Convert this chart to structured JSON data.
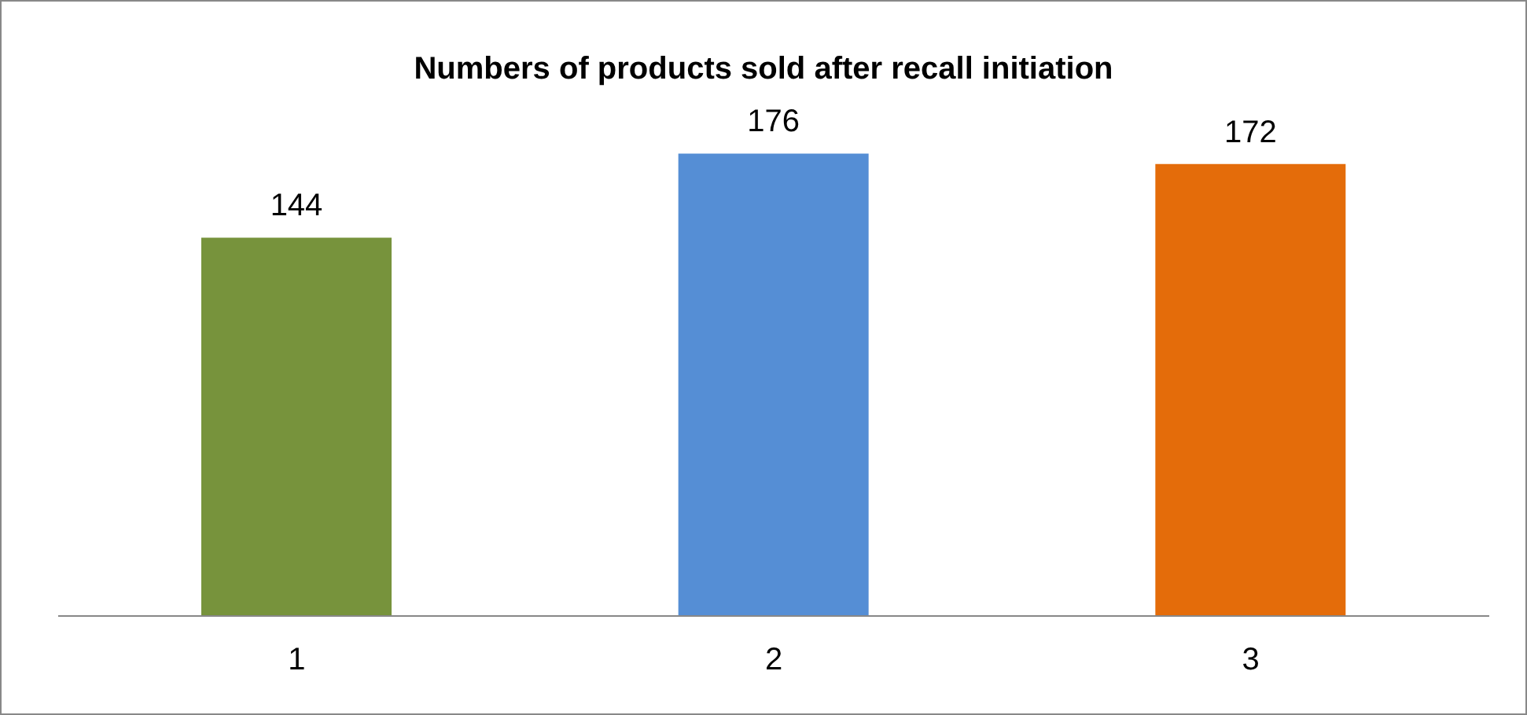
{
  "chart_data": {
    "type": "bar",
    "title": "Numbers of products sold after recall initiation",
    "categories": [
      "1",
      "2",
      "3"
    ],
    "values": [
      144,
      176,
      172
    ],
    "colors": [
      "#77933c",
      "#558ed5",
      "#e46c0a"
    ],
    "data_labels": true
  }
}
